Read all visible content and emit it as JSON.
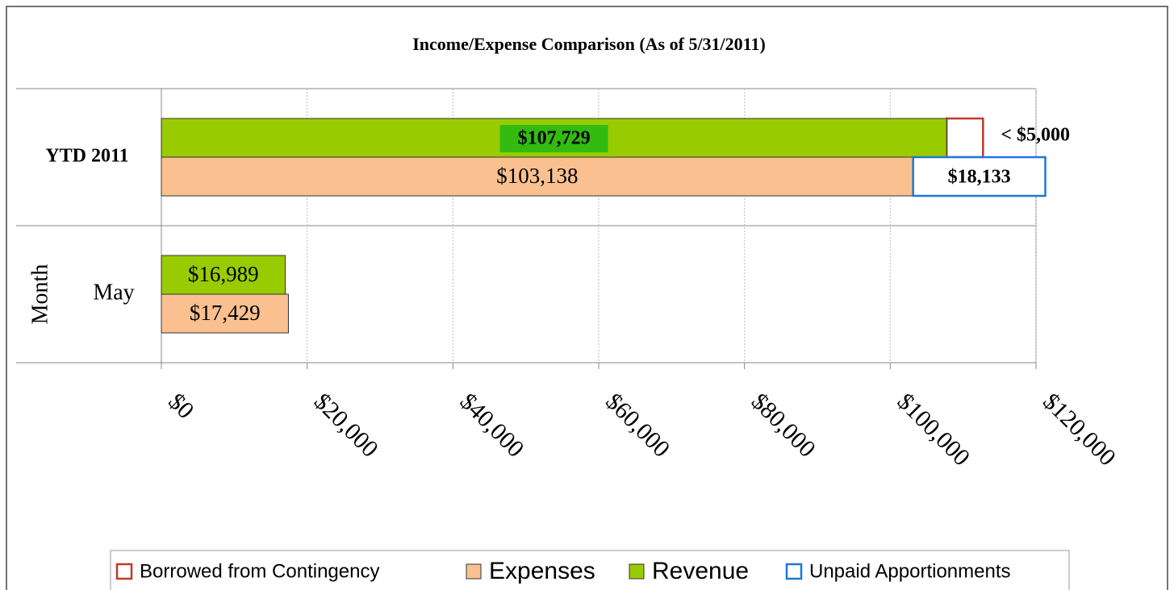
{
  "chart_data": {
    "type": "hbar",
    "title": "Income/Expense Comparison (As of 5/31/2011)",
    "categories": [
      "YTD 2011",
      "May"
    ],
    "group_label": "Month",
    "series": [
      {
        "name": "Borrowed from Contingency",
        "color": "#c0392b",
        "outline": true,
        "stack_on": "Revenue",
        "values": [
          5000,
          null
        ],
        "value_labels": [
          "< $5,000",
          null
        ]
      },
      {
        "name": "Expenses",
        "color": "#fac090",
        "values": [
          103138,
          17429
        ],
        "value_labels": [
          "$103,138",
          "$17,429"
        ]
      },
      {
        "name": "Revenue",
        "color": "#99cc00",
        "values": [
          107729,
          16989
        ],
        "value_labels": [
          "$107,729",
          "$16,989"
        ]
      },
      {
        "name": "Unpaid Apportionments",
        "color": "#1f77d4",
        "outline": true,
        "stack_on": "Expenses",
        "values": [
          18133,
          null
        ],
        "value_labels": [
          "$18,133",
          null
        ]
      }
    ],
    "xlim": [
      0,
      120000
    ],
    "xticks": [
      {
        "value": 0,
        "label": "$0"
      },
      {
        "value": 20000,
        "label": "$20,000"
      },
      {
        "value": 40000,
        "label": "$40,000"
      },
      {
        "value": 60000,
        "label": "$60,000"
      },
      {
        "value": 80000,
        "label": "$80,000"
      },
      {
        "value": 100000,
        "label": "$100,000"
      },
      {
        "value": 120000,
        "label": "$120,000"
      }
    ],
    "grid": true,
    "legend": "bottom"
  }
}
